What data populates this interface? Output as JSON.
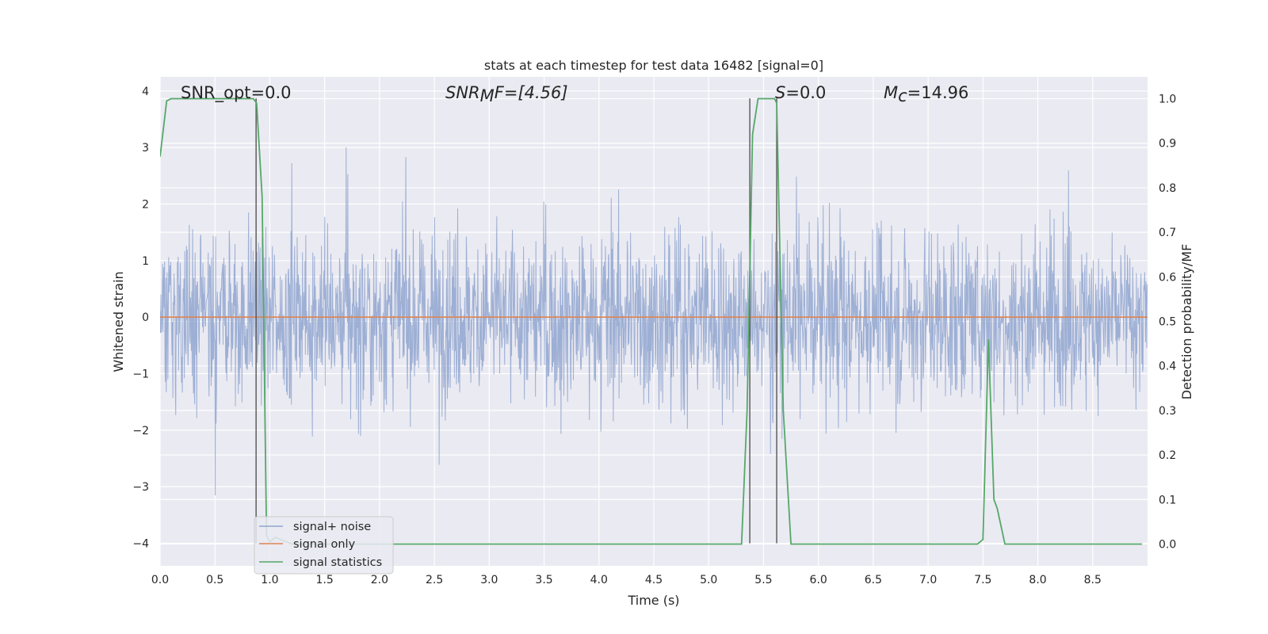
{
  "chart_data": {
    "type": "line",
    "title": "stats at each timestep for test data 16482 [signal=0]",
    "xlabel": "Time (s)",
    "ylabel_left": "Whitened strain",
    "ylabel_right": "Detection probability/MF",
    "xlim": [
      0.0,
      9.0
    ],
    "ylim_left": [
      -4.4,
      4.25
    ],
    "ylim_right": [
      -0.049,
      1.049
    ],
    "grid": true,
    "legend_placement": "lower-left",
    "xticks": [
      "0.0",
      "0.5",
      "1.0",
      "1.5",
      "2.0",
      "2.5",
      "3.0",
      "3.5",
      "4.0",
      "4.5",
      "5.0",
      "5.5",
      "6.0",
      "6.5",
      "7.0",
      "7.5",
      "8.0",
      "8.5"
    ],
    "yticks_left": [
      "−4",
      "−3",
      "−2",
      "−1",
      "0",
      "1",
      "2",
      "3",
      "4"
    ],
    "yticks_right": [
      "0.0",
      "0.1",
      "0.2",
      "0.3",
      "0.4",
      "0.5",
      "0.6",
      "0.7",
      "0.8",
      "0.9",
      "1.0"
    ],
    "annotations": {
      "snr_opt": "SNR_opt=0.0",
      "snr_mf_main": "SNR",
      "snr_mf_sub": "M",
      "snr_mf_tail": "F=[4.56]",
      "s_main": "S",
      "s_tail": "=0.0",
      "mc_main": "M",
      "mc_sub": "c",
      "mc_tail": "=14.96"
    },
    "series": [
      {
        "name": "signal+ noise",
        "color": "#8fa5cf",
        "axis": "left",
        "note": "whitened noise trace, amplitude approx within ±4 over 0–9 s"
      },
      {
        "name": "signal only",
        "color": "#dd8452",
        "axis": "left",
        "x": [
          0.0,
          9.0
        ],
        "y": [
          0.0,
          0.0
        ]
      },
      {
        "name": "signal statistics",
        "color": "#55a868",
        "axis": "right",
        "x": [
          0.0,
          0.06,
          0.1,
          0.85,
          0.88,
          0.93,
          0.97,
          1.0,
          1.05,
          1.1,
          1.2,
          5.3,
          5.35,
          5.4,
          5.45,
          5.6,
          5.62,
          5.68,
          5.75,
          7.45,
          7.5,
          7.55,
          7.6,
          7.63,
          7.7,
          8.95
        ],
        "y": [
          0.87,
          0.995,
          1.0,
          1.0,
          0.99,
          0.78,
          0.02,
          0.005,
          0.015,
          0.01,
          0.0,
          0.0,
          0.3,
          0.92,
          1.0,
          1.0,
          0.99,
          0.3,
          0.0,
          0.0,
          0.01,
          0.46,
          0.1,
          0.08,
          0.0,
          0.0
        ]
      }
    ],
    "vlines": [
      {
        "x": 0.875,
        "y_top": 3.87,
        "y_bottom": -4.0,
        "color": "#555555"
      },
      {
        "x": 5.375,
        "y_top": 3.87,
        "y_bottom": -4.0,
        "color": "#555555"
      },
      {
        "x": 5.62,
        "y_top": 3.87,
        "y_bottom": -4.0,
        "color": "#555555"
      }
    ]
  }
}
